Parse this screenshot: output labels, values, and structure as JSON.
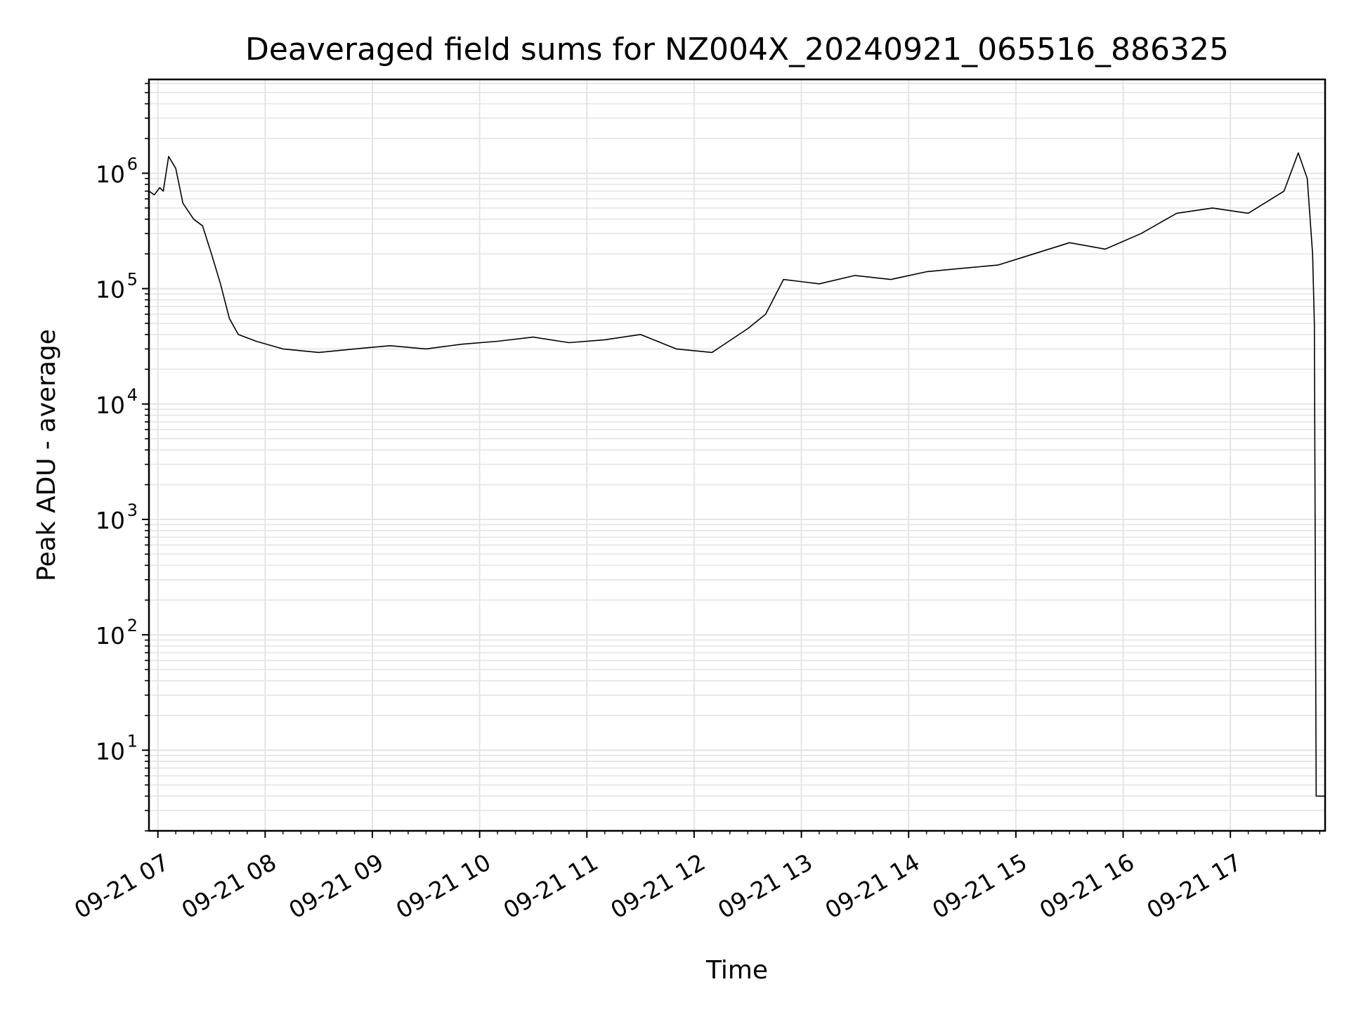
{
  "chart_data": {
    "type": "line",
    "title": "Deaveraged field sums for NZ004X_20240921_065516_886325",
    "xlabel": "Time",
    "ylabel": "Peak ADU - average",
    "yscale": "log",
    "ylim": [
      2,
      6500000
    ],
    "xlim": [
      "2024-09-21 06:55",
      "2024-09-21 17:53"
    ],
    "grid": true,
    "line_color": "#000000",
    "grid_color": "#e4e4e4",
    "x_ticks": [
      {
        "time": "2024-09-21 07:00",
        "label": "09-21 07"
      },
      {
        "time": "2024-09-21 08:00",
        "label": "09-21 08"
      },
      {
        "time": "2024-09-21 09:00",
        "label": "09-21 09"
      },
      {
        "time": "2024-09-21 10:00",
        "label": "09-21 10"
      },
      {
        "time": "2024-09-21 11:00",
        "label": "09-21 11"
      },
      {
        "time": "2024-09-21 12:00",
        "label": "09-21 12"
      },
      {
        "time": "2024-09-21 13:00",
        "label": "09-21 13"
      },
      {
        "time": "2024-09-21 14:00",
        "label": "09-21 14"
      },
      {
        "time": "2024-09-21 15:00",
        "label": "09-21 15"
      },
      {
        "time": "2024-09-21 16:00",
        "label": "09-21 16"
      },
      {
        "time": "2024-09-21 17:00",
        "label": "09-21 17"
      }
    ],
    "y_ticks": [
      {
        "value": 10,
        "base": "10",
        "exp": "1"
      },
      {
        "value": 100,
        "base": "10",
        "exp": "2"
      },
      {
        "value": 1000,
        "base": "10",
        "exp": "3"
      },
      {
        "value": 10000,
        "base": "10",
        "exp": "4"
      },
      {
        "value": 100000,
        "base": "10",
        "exp": "5"
      },
      {
        "value": 1000000,
        "base": "10",
        "exp": "6"
      }
    ],
    "series": [
      {
        "points": [
          [
            "2024-09-21 06:55",
            700000
          ],
          [
            "2024-09-21 06:58",
            650000
          ],
          [
            "2024-09-21 07:01",
            750000
          ],
          [
            "2024-09-21 07:03",
            700000
          ],
          [
            "2024-09-21 07:06",
            1400000
          ],
          [
            "2024-09-21 07:10",
            1100000
          ],
          [
            "2024-09-21 07:14",
            550000
          ],
          [
            "2024-09-21 07:20",
            400000
          ],
          [
            "2024-09-21 07:25",
            350000
          ],
          [
            "2024-09-21 07:30",
            200000
          ],
          [
            "2024-09-21 07:35",
            110000
          ],
          [
            "2024-09-21 07:40",
            55000
          ],
          [
            "2024-09-21 07:45",
            40000
          ],
          [
            "2024-09-21 07:55",
            35000
          ],
          [
            "2024-09-21 08:10",
            30000
          ],
          [
            "2024-09-21 08:30",
            28000
          ],
          [
            "2024-09-21 08:50",
            30000
          ],
          [
            "2024-09-21 09:10",
            32000
          ],
          [
            "2024-09-21 09:30",
            30000
          ],
          [
            "2024-09-21 09:50",
            33000
          ],
          [
            "2024-09-21 10:10",
            35000
          ],
          [
            "2024-09-21 10:30",
            38000
          ],
          [
            "2024-09-21 10:50",
            34000
          ],
          [
            "2024-09-21 11:10",
            36000
          ],
          [
            "2024-09-21 11:30",
            40000
          ],
          [
            "2024-09-21 11:50",
            30000
          ],
          [
            "2024-09-21 12:10",
            28000
          ],
          [
            "2024-09-21 12:30",
            45000
          ],
          [
            "2024-09-21 12:40",
            60000
          ],
          [
            "2024-09-21 12:50",
            120000
          ],
          [
            "2024-09-21 13:10",
            110000
          ],
          [
            "2024-09-21 13:30",
            130000
          ],
          [
            "2024-09-21 13:50",
            120000
          ],
          [
            "2024-09-21 14:10",
            140000
          ],
          [
            "2024-09-21 14:30",
            150000
          ],
          [
            "2024-09-21 14:50",
            160000
          ],
          [
            "2024-09-21 15:10",
            200000
          ],
          [
            "2024-09-21 15:30",
            250000
          ],
          [
            "2024-09-21 15:50",
            220000
          ],
          [
            "2024-09-21 16:10",
            300000
          ],
          [
            "2024-09-21 16:30",
            450000
          ],
          [
            "2024-09-21 16:50",
            500000
          ],
          [
            "2024-09-21 17:10",
            450000
          ],
          [
            "2024-09-21 17:30",
            700000
          ],
          [
            "2024-09-21 17:38",
            1500000
          ],
          [
            "2024-09-21 17:43",
            900000
          ],
          [
            "2024-09-21 17:46",
            200000
          ],
          [
            "2024-09-21 17:47",
            50000
          ],
          [
            "2024-09-21 17:48",
            4
          ],
          [
            "2024-09-21 17:53",
            4
          ]
        ]
      }
    ]
  }
}
